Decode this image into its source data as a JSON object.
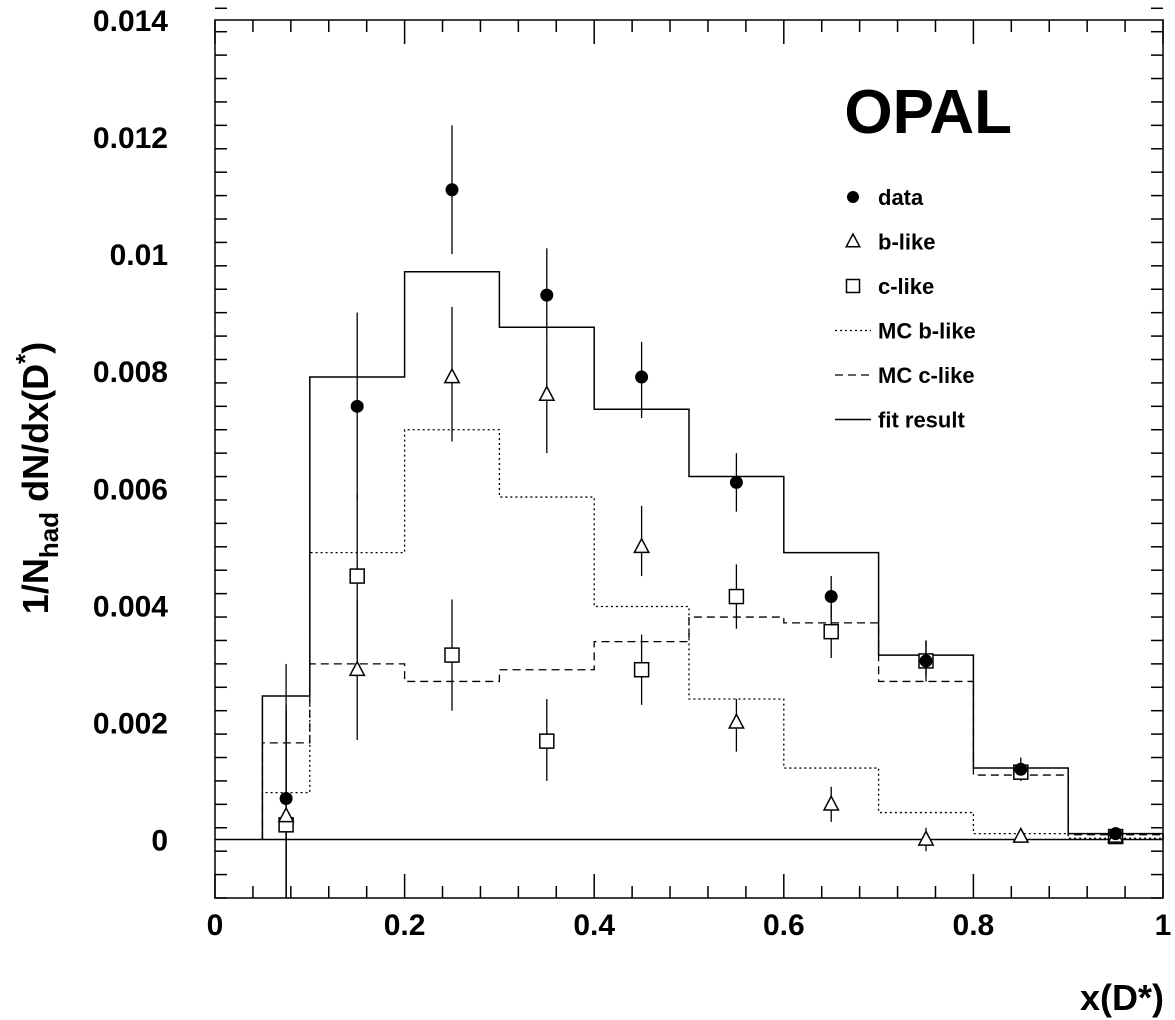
{
  "chart_data": {
    "type": "scatter",
    "experiment": "OPAL",
    "xlabel": "x(D*)",
    "ylabel": {
      "base": "1/N",
      "sub": "had",
      "rest": " dN/dx(D",
      "sup": "*",
      "close": ")"
    },
    "xlim": [
      0,
      1
    ],
    "ylim": [
      -0.001,
      0.014
    ],
    "xticks": [
      0,
      0.2,
      0.4,
      0.6,
      0.8,
      1
    ],
    "xtick_labels": [
      "0",
      "0.2",
      "0.4",
      "0.6",
      "0.8",
      "1"
    ],
    "yticks": [
      0,
      0.002,
      0.004,
      0.006,
      0.008,
      0.01,
      0.012,
      0.014
    ],
    "ytick_labels": [
      "0",
      "0.002",
      "0.004",
      "0.006",
      "0.008",
      "0.01",
      "0.012",
      "0.014"
    ],
    "grid": false,
    "legend_position": "top-right",
    "legend": [
      {
        "label": "data",
        "marker": "filled-circle"
      },
      {
        "label": "b-like",
        "marker": "open-triangle"
      },
      {
        "label": "c-like",
        "marker": "open-square"
      },
      {
        "label": "MC b-like",
        "marker": "dotted-line"
      },
      {
        "label": "MC c-like",
        "marker": "dashed-line"
      },
      {
        "label": "fit result",
        "marker": "solid-line"
      }
    ],
    "points": {
      "data": [
        {
          "x": 0.075,
          "y": 0.0007,
          "lo": -0.0015,
          "hi": 0.003
        },
        {
          "x": 0.15,
          "y": 0.0074,
          "lo": 0.0058,
          "hi": 0.009
        },
        {
          "x": 0.25,
          "y": 0.0111,
          "lo": 0.01,
          "hi": 0.0122
        },
        {
          "x": 0.35,
          "y": 0.0093,
          "lo": 0.0085,
          "hi": 0.0101
        },
        {
          "x": 0.45,
          "y": 0.0079,
          "lo": 0.0072,
          "hi": 0.0085
        },
        {
          "x": 0.55,
          "y": 0.0061,
          "lo": 0.0056,
          "hi": 0.0066
        },
        {
          "x": 0.65,
          "y": 0.00415,
          "lo": 0.0038,
          "hi": 0.0045
        },
        {
          "x": 0.75,
          "y": 0.00305,
          "lo": 0.0028,
          "hi": 0.0034
        },
        {
          "x": 0.85,
          "y": 0.0012,
          "lo": 0.0011,
          "hi": 0.0014
        },
        {
          "x": 0.95,
          "y": 0.0001,
          "lo": 0.0,
          "hi": 0.0002
        }
      ],
      "b_like": [
        {
          "x": 0.075,
          "y": 0.0004,
          "lo": -0.0015,
          "hi": 0.0023
        },
        {
          "x": 0.15,
          "y": 0.0029,
          "lo": 0.0017,
          "hi": 0.0041
        },
        {
          "x": 0.25,
          "y": 0.0079,
          "lo": 0.0068,
          "hi": 0.0091
        },
        {
          "x": 0.35,
          "y": 0.0076,
          "lo": 0.0066,
          "hi": 0.0085
        },
        {
          "x": 0.45,
          "y": 0.005,
          "lo": 0.0045,
          "hi": 0.0057
        },
        {
          "x": 0.55,
          "y": 0.002,
          "lo": 0.0015,
          "hi": 0.0024
        },
        {
          "x": 0.65,
          "y": 0.0006,
          "lo": 0.0003,
          "hi": 0.0009
        },
        {
          "x": 0.75,
          "y": 0.0,
          "lo": -0.0002,
          "hi": 0.0002
        },
        {
          "x": 0.85,
          "y": 5e-05,
          "lo": 0.0,
          "hi": 0.0001
        },
        {
          "x": 0.95,
          "y": 5e-05,
          "lo": 0.0,
          "hi": 0.0001
        }
      ],
      "c_like": [
        {
          "x": 0.075,
          "y": 0.00025,
          "lo": -0.0015,
          "hi": 0.0022
        },
        {
          "x": 0.15,
          "y": 0.0045,
          "lo": 0.0031,
          "hi": 0.0059
        },
        {
          "x": 0.25,
          "y": 0.00315,
          "lo": 0.0022,
          "hi": 0.0041
        },
        {
          "x": 0.35,
          "y": 0.00168,
          "lo": 0.001,
          "hi": 0.0024
        },
        {
          "x": 0.45,
          "y": 0.0029,
          "lo": 0.0023,
          "hi": 0.0035
        },
        {
          "x": 0.55,
          "y": 0.00415,
          "lo": 0.0036,
          "hi": 0.0047
        },
        {
          "x": 0.65,
          "y": 0.00355,
          "lo": 0.0031,
          "hi": 0.004
        },
        {
          "x": 0.75,
          "y": 0.00305,
          "lo": 0.0027,
          "hi": 0.0034
        },
        {
          "x": 0.85,
          "y": 0.00115,
          "lo": 0.001,
          "hi": 0.0013
        },
        {
          "x": 0.95,
          "y": 5e-05,
          "lo": 0.0,
          "hi": 0.0001
        }
      ]
    },
    "histograms": {
      "bin_edges": [
        0.05,
        0.1,
        0.2,
        0.3,
        0.4,
        0.5,
        0.6,
        0.7,
        0.8,
        0.9,
        1.0
      ],
      "fit_result": [
        0.00245,
        0.0079,
        0.0097,
        0.00875,
        0.00735,
        0.0062,
        0.0049,
        0.00315,
        0.00122,
        0.0001
      ],
      "mc_b_like": [
        0.0008,
        0.0049,
        0.007,
        0.00585,
        0.00398,
        0.0024,
        0.00122,
        0.00046,
        0.0001,
        2e-05
      ],
      "mc_c_like": [
        0.00165,
        0.003,
        0.0027,
        0.0029,
        0.00338,
        0.0038,
        0.0037,
        0.0027,
        0.0011,
        8e-05
      ]
    }
  }
}
